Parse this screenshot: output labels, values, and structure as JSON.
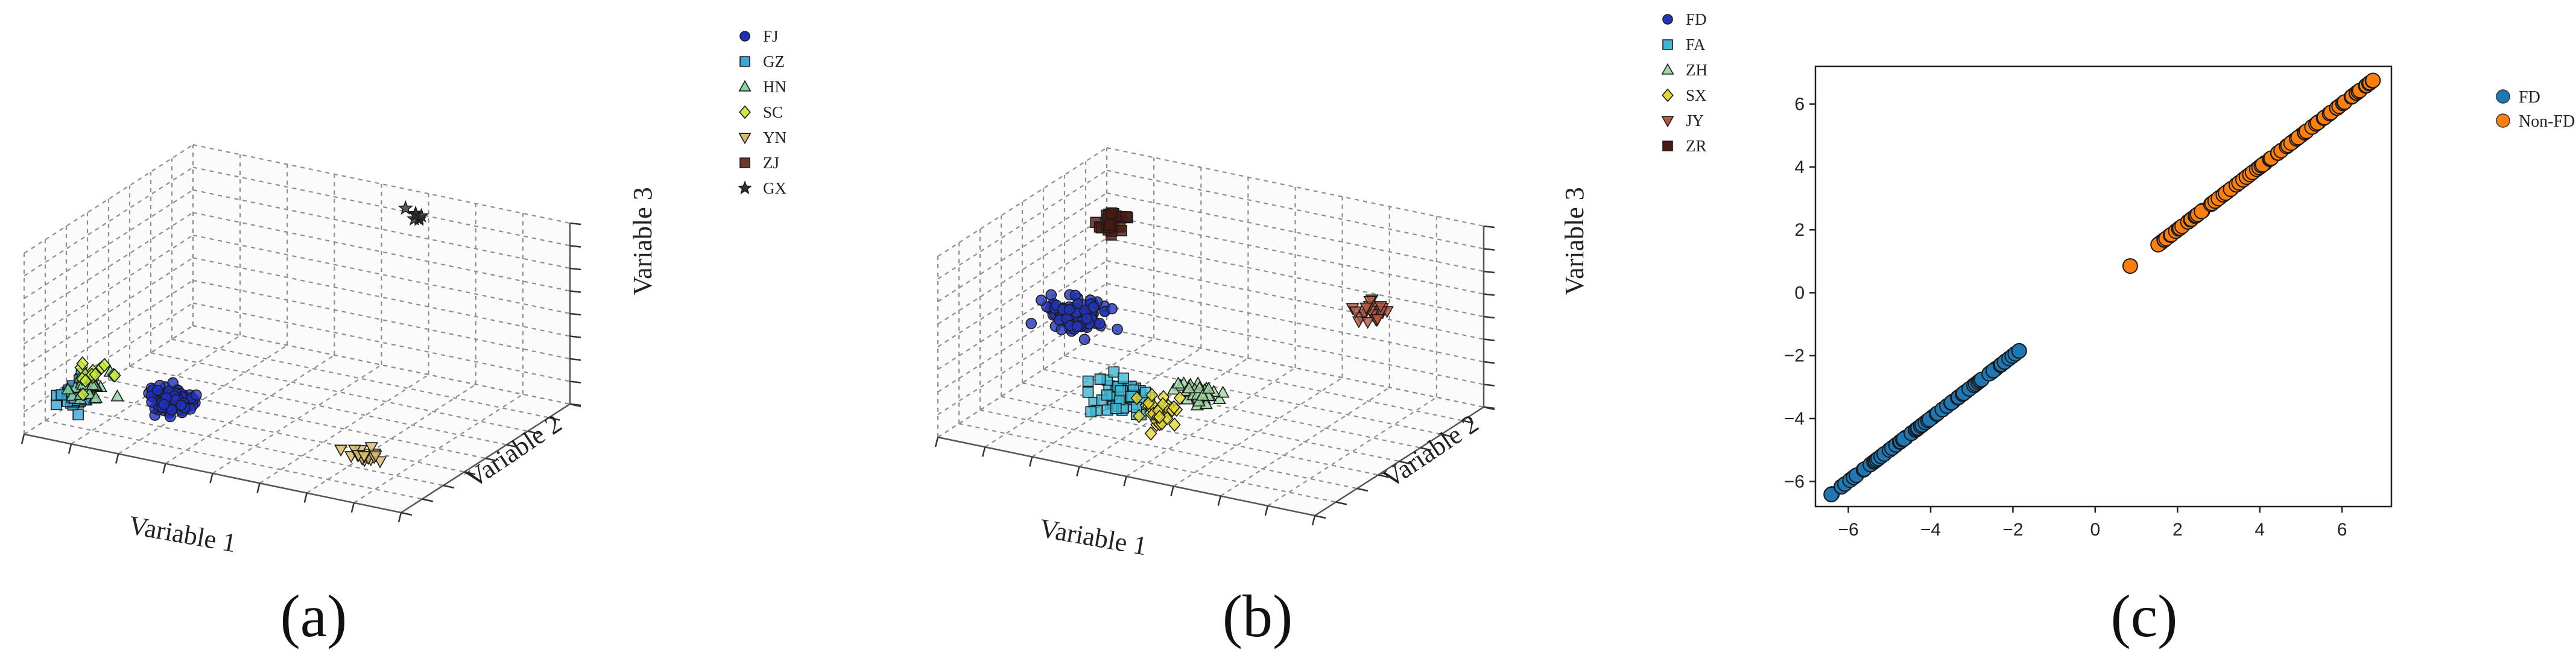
{
  "chart_data": [
    {
      "panel": "(a)",
      "type": "scatter",
      "dim": 3,
      "xlabel": "Variable 1",
      "ylabel": "Variable 2",
      "zlabel": "Variable 3",
      "grid": true,
      "legend_position": "right",
      "series": [
        {
          "name": "FJ",
          "marker": "circle",
          "color": "#1f2fbf",
          "count": 90,
          "center": [
            0.36,
            0.07,
            0.3
          ],
          "spread": [
            0.05,
            0.05,
            0.05
          ]
        },
        {
          "name": "GZ",
          "marker": "square",
          "color": "#3aa8d8",
          "count": 45,
          "center": [
            0.1,
            0.08,
            0.22
          ],
          "spread": [
            0.03,
            0.05,
            0.06
          ]
        },
        {
          "name": "HN",
          "marker": "triangle-up",
          "color": "#8ed3a0",
          "count": 25,
          "center": [
            0.13,
            0.1,
            0.24
          ],
          "spread": [
            0.04,
            0.05,
            0.06
          ]
        },
        {
          "name": "SC",
          "marker": "diamond",
          "color": "#c6ec3f",
          "count": 15,
          "center": [
            0.14,
            0.12,
            0.32
          ],
          "spread": [
            0.04,
            0.04,
            0.05
          ]
        },
        {
          "name": "YN",
          "marker": "triangle-down",
          "color": "#d9b96a",
          "count": 22,
          "center": [
            0.86,
            0.12,
            0.18
          ],
          "spread": [
            0.03,
            0.03,
            0.03
          ]
        },
        {
          "name": "ZJ",
          "marker": "square",
          "color": "#6b3a2c",
          "count": 0,
          "center": [
            0.5,
            0.5,
            0.5
          ],
          "spread": [
            0.0,
            0.0,
            0.0
          ]
        },
        {
          "name": "GX",
          "marker": "star",
          "color": "#333333",
          "count": 7,
          "center": [
            0.62,
            0.93,
            0.92
          ],
          "spread": [
            0.02,
            0.02,
            0.03
          ]
        }
      ]
    },
    {
      "panel": "(b)",
      "type": "scatter",
      "dim": 3,
      "xlabel": "Variable 1",
      "ylabel": "Variable 2",
      "zlabel": "Variable 3",
      "grid": true,
      "legend_position": "right",
      "series": [
        {
          "name": "FD",
          "marker": "circle",
          "color": "#2335b8",
          "count": 120,
          "center": [
            0.22,
            0.32,
            0.58
          ],
          "spread": [
            0.06,
            0.05,
            0.07
          ]
        },
        {
          "name": "FA",
          "marker": "square",
          "color": "#3fb8d6",
          "count": 55,
          "center": [
            0.4,
            0.18,
            0.3
          ],
          "spread": [
            0.06,
            0.05,
            0.06
          ]
        },
        {
          "name": "ZH",
          "marker": "triangle-up",
          "color": "#a2d9a6",
          "count": 40,
          "center": [
            0.58,
            0.24,
            0.34
          ],
          "spread": [
            0.05,
            0.05,
            0.05
          ]
        },
        {
          "name": "SX",
          "marker": "diamond",
          "color": "#e3d833",
          "count": 35,
          "center": [
            0.52,
            0.16,
            0.28
          ],
          "spread": [
            0.05,
            0.05,
            0.08
          ]
        },
        {
          "name": "JY",
          "marker": "triangle-down",
          "color": "#b4583e",
          "count": 25,
          "center": [
            0.76,
            0.88,
            0.5
          ],
          "spread": [
            0.03,
            0.03,
            0.05
          ]
        },
        {
          "name": "ZR",
          "marker": "square",
          "color": "#4a1a12",
          "count": 28,
          "center": [
            0.2,
            0.58,
            0.92
          ],
          "spread": [
            0.03,
            0.03,
            0.07
          ]
        }
      ]
    },
    {
      "panel": "(c)",
      "type": "scatter",
      "dim": 2,
      "xlim": [
        -6.8,
        7.2
      ],
      "ylim": [
        -6.8,
        7.2
      ],
      "xticks": [
        -6,
        -4,
        -2,
        0,
        2,
        4,
        6
      ],
      "yticks": [
        -6,
        -4,
        -2,
        0,
        2,
        4,
        6
      ],
      "grid": false,
      "legend_position": "outside-top-right",
      "series": [
        {
          "name": "FD",
          "color": "#1f77b4",
          "x_range": [
            -6.4,
            -1.85
          ],
          "count": 90
        },
        {
          "name": "Non-FD",
          "color": "#ff7f0e",
          "x_range": [
            0.85,
            6.75
          ],
          "count": 110
        }
      ]
    }
  ]
}
